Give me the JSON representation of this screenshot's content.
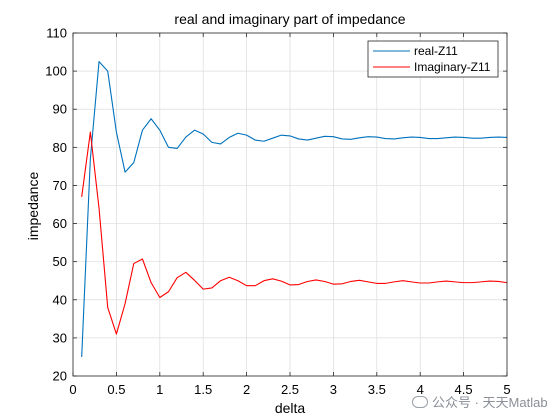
{
  "watermark": {
    "text": "公众号 · 天天Matlab"
  },
  "chart_data": {
    "type": "line",
    "title": "real and imaginary part of impedance",
    "xlabel": "delta",
    "ylabel": "impedance",
    "xlim": [
      0,
      5
    ],
    "ylim": [
      20,
      110
    ],
    "xticks": [
      0,
      0.5,
      1,
      1.5,
      2,
      2.5,
      3,
      3.5,
      4,
      4.5,
      5
    ],
    "xtick_labels": [
      "0",
      "0.5",
      "1",
      "1.5",
      "2",
      "2.5",
      "3",
      "3.5",
      "4",
      "4.5",
      "5"
    ],
    "yticks": [
      20,
      30,
      40,
      50,
      60,
      70,
      80,
      90,
      100,
      110
    ],
    "ytick_labels": [
      "20",
      "30",
      "40",
      "50",
      "60",
      "70",
      "80",
      "90",
      "100",
      "110"
    ],
    "grid": true,
    "legend_position": "top-right",
    "x": [
      0.1,
      0.2,
      0.3,
      0.4,
      0.5,
      0.6,
      0.7,
      0.8,
      0.9,
      1.0,
      1.1,
      1.2,
      1.3,
      1.4,
      1.5,
      1.6,
      1.7,
      1.8,
      1.9,
      2.0,
      2.1,
      2.2,
      2.3,
      2.4,
      2.5,
      2.6,
      2.7,
      2.8,
      2.9,
      3.0,
      3.1,
      3.2,
      3.3,
      3.4,
      3.5,
      3.6,
      3.7,
      3.8,
      3.9,
      4.0,
      4.1,
      4.2,
      4.3,
      4.4,
      4.5,
      4.6,
      4.7,
      4.8,
      4.9,
      5.0
    ],
    "series": [
      {
        "name": "real-Z11",
        "color": "#0072BD",
        "values": [
          25,
          77,
          102.5,
          100,
          84,
          73.5,
          76,
          84.5,
          87.5,
          84.5,
          80,
          79.7,
          82.7,
          84.5,
          83.5,
          81.3,
          80.9,
          82.6,
          83.7,
          83.2,
          81.9,
          81.6,
          82.4,
          83.2,
          83,
          82.2,
          81.9,
          82.4,
          82.9,
          82.8,
          82.2,
          82.1,
          82.5,
          82.8,
          82.7,
          82.3,
          82.2,
          82.5,
          82.7,
          82.6,
          82.3,
          82.3,
          82.5,
          82.7,
          82.6,
          82.4,
          82.4,
          82.6,
          82.7,
          82.6
        ]
      },
      {
        "name": "Imaginary-Z11",
        "color": "#FF0000",
        "values": [
          67,
          84,
          64,
          38,
          31,
          39,
          49.5,
          50.7,
          44.5,
          40.6,
          42.1,
          45.8,
          47.2,
          45.1,
          42.8,
          43.1,
          45,
          45.9,
          45,
          43.7,
          43.7,
          45,
          45.5,
          44.9,
          43.9,
          44,
          44.8,
          45.2,
          44.8,
          44.1,
          44.2,
          44.8,
          45.1,
          44.7,
          44.3,
          44.3,
          44.7,
          45,
          44.7,
          44.4,
          44.4,
          44.7,
          44.9,
          44.7,
          44.5,
          44.5,
          44.7,
          44.9,
          44.8,
          44.5
        ]
      }
    ]
  }
}
